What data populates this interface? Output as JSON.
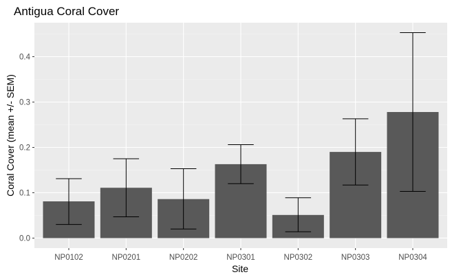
{
  "chart_data": {
    "type": "bar",
    "title": "Antigua Coral Cover",
    "xlabel": "Site",
    "ylabel": "Coral Cover (mean +/- SEM)",
    "categories": [
      "NP0102",
      "NP0201",
      "NP0202",
      "NP0301",
      "NP0302",
      "NP0303",
      "NP0304"
    ],
    "values": [
      0.081,
      0.111,
      0.086,
      0.163,
      0.051,
      0.19,
      0.278
    ],
    "error_low": [
      0.03,
      0.047,
      0.02,
      0.12,
      0.014,
      0.117,
      0.103
    ],
    "error_high": [
      0.131,
      0.175,
      0.153,
      0.206,
      0.089,
      0.263,
      0.453
    ],
    "ylim": [
      -0.022,
      0.475
    ],
    "yticks": [
      0.0,
      0.1,
      0.2,
      0.3,
      0.4
    ],
    "ytick_labels": [
      "0.0",
      "0.1",
      "0.2",
      "0.3",
      "0.4"
    ],
    "grid": true,
    "colors": {
      "bar": "#595959",
      "panel": "#ebebeb",
      "grid_major": "#ffffff",
      "grid_minor": "#f5f5f5",
      "error_bar": "#000000"
    }
  }
}
